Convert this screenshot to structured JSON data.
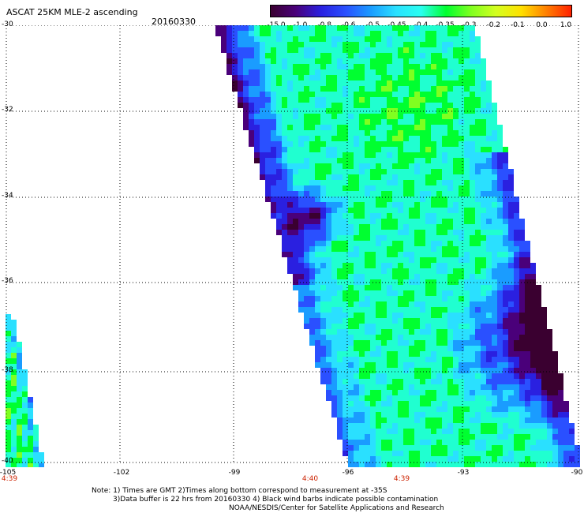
{
  "header": {
    "title": "ASCAT 25KM MLE-2 ascending",
    "date": "20160330"
  },
  "colorbar": {
    "labels": [
      "-15.0",
      "-1.0",
      "-0.8",
      "-0.6",
      "-0.5",
      "-0.45",
      "-0.4",
      "-0.35",
      "-0.3",
      "-0.2",
      "-0.1",
      "0.0",
      "1.0"
    ],
    "colors": [
      "#3a0030",
      "#4a007a",
      "#2a20e0",
      "#2a50ff",
      "#1a9cff",
      "#2ae0ff",
      "#2afff0",
      "#00ff30",
      "#80ff20",
      "#d4ff20",
      "#ffe000",
      "#ff8000",
      "#ff2000"
    ]
  },
  "map": {
    "lat_labels": [
      "-30",
      "-32",
      "-34",
      "-36",
      "-38",
      "-40"
    ],
    "lon_labels": [
      "-105",
      "-102",
      "-99",
      "-96",
      "-93",
      "-90"
    ],
    "time_labels": [
      "4:39",
      "4:40",
      "4:39"
    ]
  },
  "notes": {
    "line1": "Note: 1) Times are GMT 2)Times along bottom correspond to measurement at -35S",
    "line2": "3)Data buffer is 22 hrs from 20160330 4) Black wind barbs indicate possible contamination",
    "line3": "NOAA/NESDIS/Center for Satellite Applications and Research"
  }
}
